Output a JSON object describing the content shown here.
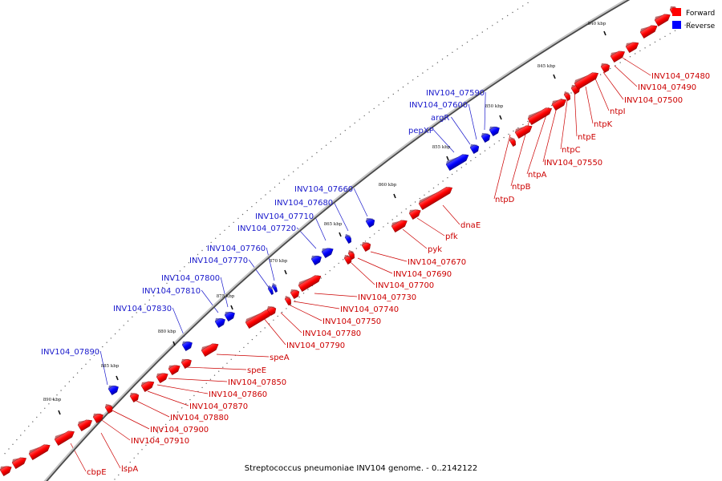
{
  "caption": "Streptococcus pneumoniae INV104 genome. - 0..2142122",
  "legend": [
    {
      "label": "Forward",
      "color": "#ff0000"
    },
    {
      "label": "Reverse",
      "color": "#0000ff"
    }
  ],
  "colors": {
    "forward": "#ff0000",
    "reverse": "#0000ff",
    "forward_label": "#cc0000",
    "reverse_label": "#1a1acc"
  },
  "ticks": [
    {
      "kbp": 840,
      "label": "840 kbp"
    },
    {
      "kbp": 845,
      "label": "845 kbp"
    },
    {
      "kbp": 850,
      "label": "850 kbp"
    },
    {
      "kbp": 855,
      "label": "855 kbp"
    },
    {
      "kbp": 860,
      "label": "860 kbp"
    },
    {
      "kbp": 865,
      "label": "865 kbp"
    },
    {
      "kbp": 870,
      "label": "870 kbp"
    },
    {
      "kbp": 875,
      "label": "875 kbp"
    },
    {
      "kbp": 880,
      "label": "880 kbp"
    },
    {
      "kbp": 885,
      "label": "885 kbp"
    },
    {
      "kbp": 890,
      "label": "890 kbp"
    }
  ],
  "forward_labels": [
    "INV104_07480",
    "INV104_07490",
    "INV104_07500",
    "ntpI",
    "ntpK",
    "ntpE",
    "ntpC",
    "INV104_07550",
    "ntpA",
    "ntpB",
    "ntpD",
    "dnaE",
    "pfk",
    "pyk",
    "INV104_07670",
    "INV104_07690",
    "INV104_07700",
    "INV104_07730",
    "INV104_07740",
    "INV104_07750",
    "INV104_07780",
    "INV104_07790",
    "speA",
    "speE",
    "INV104_07850",
    "INV104_07860",
    "INV104_07870",
    "INV104_07880",
    "INV104_07900",
    "INV104_07910",
    "lspA",
    "cbpE"
  ],
  "reverse_labels": [
    "INV104_07590",
    "INV104_07600",
    "argR",
    "pepXP",
    "INV104_07660",
    "INV104_07680",
    "INV104_07710",
    "INV104_07720",
    "INV104_07760",
    "INV104_07770",
    "INV104_07800",
    "INV104_07810",
    "INV104_07830",
    "INV104_07890"
  ]
}
